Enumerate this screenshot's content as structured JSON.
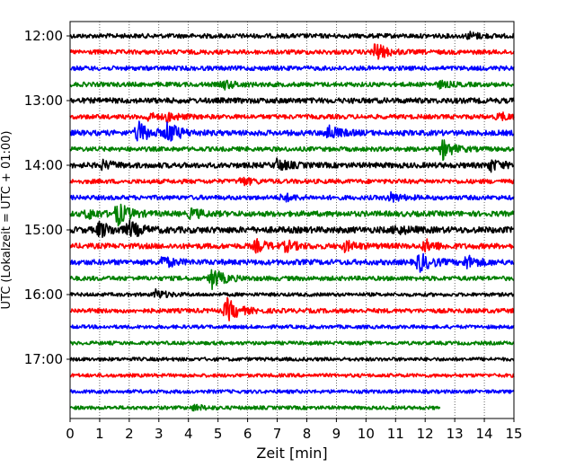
{
  "chart_data": {
    "type": "line",
    "subtype": "helicorder seismogram",
    "xlabel": "Zeit  [min]",
    "ylabel": "UTC (Lokalzeit = UTC + 01:00)",
    "xlim": [
      0,
      15
    ],
    "x_ticks": [
      "0",
      "1",
      "2",
      "3",
      "4",
      "5",
      "6",
      "7",
      "8",
      "9",
      "10",
      "11",
      "12",
      "13",
      "14",
      "15"
    ],
    "y_ticks": [
      {
        "label": "12:00",
        "row": 0
      },
      {
        "label": "13:00",
        "row": 4
      },
      {
        "label": "14:00",
        "row": 8
      },
      {
        "label": "15:00",
        "row": 12
      },
      {
        "label": "16:00",
        "row": 16
      },
      {
        "label": "17:00",
        "row": 20
      }
    ],
    "row_minutes": 15,
    "row_colors": [
      "#000000",
      "#ff0000",
      "#0000ff",
      "#008000"
    ],
    "vertical_grid": "dotted, every 1 min",
    "last_row_end_min": 12.5,
    "traces": [
      {
        "start": "12:00",
        "noise": 0.25,
        "events": [
          {
            "t": 13.5,
            "amp": 0.35
          }
        ]
      },
      {
        "start": "12:15",
        "noise": 0.25,
        "events": [
          {
            "t": 10.3,
            "amp": 1.0
          }
        ]
      },
      {
        "start": "12:30",
        "noise": 0.25,
        "events": []
      },
      {
        "start": "12:45",
        "noise": 0.25,
        "events": [
          {
            "t": 5.2,
            "amp": 0.45
          },
          {
            "t": 12.5,
            "amp": 0.3
          }
        ]
      },
      {
        "start": "13:00",
        "noise": 0.3,
        "events": []
      },
      {
        "start": "13:15",
        "noise": 0.25,
        "events": [
          {
            "t": 2.6,
            "amp": 0.4
          },
          {
            "t": 3.3,
            "amp": 0.4
          },
          {
            "t": 14.5,
            "amp": 0.4
          }
        ]
      },
      {
        "start": "13:30",
        "noise": 0.3,
        "events": [
          {
            "t": 2.3,
            "amp": 1.2
          },
          {
            "t": 3.3,
            "amp": 1.1
          },
          {
            "t": 8.7,
            "amp": 0.8
          }
        ]
      },
      {
        "start": "13:45",
        "noise": 0.25,
        "events": [
          {
            "t": 12.6,
            "amp": 1.0
          }
        ]
      },
      {
        "start": "14:00",
        "noise": 0.3,
        "events": [
          {
            "t": 1.1,
            "amp": 0.4
          },
          {
            "t": 7.0,
            "amp": 0.6
          },
          {
            "t": 14.2,
            "amp": 0.6
          }
        ]
      },
      {
        "start": "14:15",
        "noise": 0.25,
        "events": [
          {
            "t": 5.8,
            "amp": 0.4
          }
        ]
      },
      {
        "start": "14:30",
        "noise": 0.25,
        "events": [
          {
            "t": 7.2,
            "amp": 0.4
          },
          {
            "t": 10.8,
            "amp": 0.5
          }
        ]
      },
      {
        "start": "14:45",
        "noise": 0.3,
        "events": [
          {
            "t": 0.6,
            "amp": 0.5
          },
          {
            "t": 1.6,
            "amp": 1.2
          },
          {
            "t": 4.1,
            "amp": 0.5
          }
        ]
      },
      {
        "start": "15:00",
        "noise": 0.35,
        "events": [
          {
            "t": 1.0,
            "amp": 0.8
          },
          {
            "t": 2.0,
            "amp": 0.8
          },
          {
            "t": 11.0,
            "amp": 0.4
          }
        ]
      },
      {
        "start": "15:15",
        "noise": 0.3,
        "events": [
          {
            "t": 6.3,
            "amp": 0.6
          },
          {
            "t": 7.3,
            "amp": 0.5
          },
          {
            "t": 9.3,
            "amp": 0.5
          },
          {
            "t": 12.0,
            "amp": 0.6
          }
        ]
      },
      {
        "start": "15:30",
        "noise": 0.3,
        "events": [
          {
            "t": 3.1,
            "amp": 0.6
          },
          {
            "t": 11.8,
            "amp": 1.0
          },
          {
            "t": 13.4,
            "amp": 0.7
          }
        ]
      },
      {
        "start": "15:45",
        "noise": 0.25,
        "events": [
          {
            "t": 4.8,
            "amp": 1.1
          }
        ]
      },
      {
        "start": "16:00",
        "noise": 0.2,
        "events": [
          {
            "t": 2.9,
            "amp": 0.5
          }
        ]
      },
      {
        "start": "16:15",
        "noise": 0.25,
        "events": [
          {
            "t": 5.3,
            "amp": 1.3
          }
        ]
      },
      {
        "start": "16:30",
        "noise": 0.2,
        "events": []
      },
      {
        "start": "16:45",
        "noise": 0.2,
        "events": []
      },
      {
        "start": "17:00",
        "noise": 0.2,
        "events": []
      },
      {
        "start": "17:15",
        "noise": 0.2,
        "events": []
      },
      {
        "start": "17:30",
        "noise": 0.2,
        "events": []
      },
      {
        "start": "17:45",
        "noise": 0.2,
        "events": [
          {
            "t": 4.2,
            "amp": 0.3
          }
        ]
      }
    ]
  }
}
